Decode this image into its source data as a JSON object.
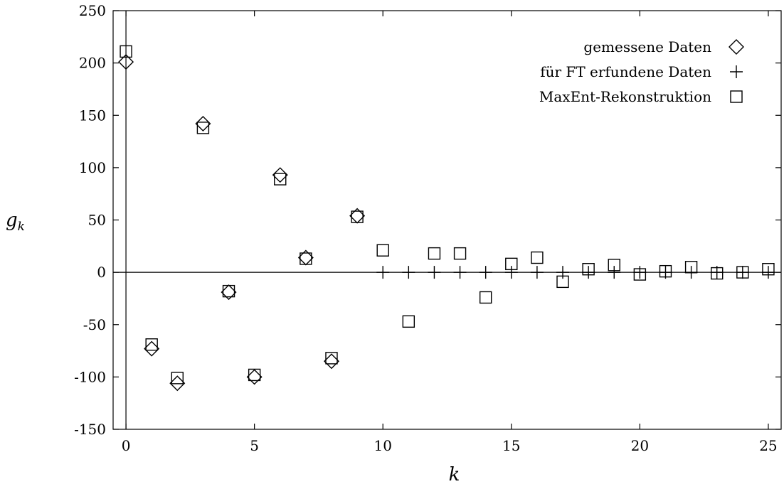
{
  "chart_data": {
    "type": "scatter",
    "title": "",
    "xlabel": "k",
    "ylabel": {
      "base": "g",
      "sub": "k"
    },
    "xlim": [
      -0.5,
      25.5
    ],
    "ylim": [
      -150,
      250
    ],
    "xticks": [
      "0",
      "5",
      "10",
      "15",
      "20",
      "25"
    ],
    "yticks": [
      "250",
      "200",
      "150",
      "100",
      "50",
      "0",
      "-50",
      "-100",
      "-150"
    ],
    "grid": false,
    "zero_lines": true,
    "legend_position": "top-right",
    "series": [
      {
        "name": "gemessene Daten",
        "marker": "diamond",
        "x": [
          0,
          1,
          2,
          3,
          4,
          5,
          6,
          7,
          8,
          9
        ],
        "y": [
          201,
          -73,
          -106,
          142,
          -19,
          -100,
          93,
          14,
          -85,
          54
        ]
      },
      {
        "name": "für FT erfundene Daten",
        "marker": "plus",
        "x": [
          10,
          11,
          12,
          13,
          14,
          15,
          16,
          17,
          18,
          19,
          20,
          21,
          22,
          23,
          24,
          25
        ],
        "y": [
          0,
          0,
          0,
          0,
          0,
          0,
          0,
          0,
          0,
          0,
          0,
          0,
          0,
          0,
          0,
          0
        ]
      },
      {
        "name": "MaxEnt-Rekonstruktion",
        "marker": "square",
        "x": [
          0,
          1,
          2,
          3,
          4,
          5,
          6,
          7,
          8,
          9,
          10,
          11,
          12,
          13,
          14,
          15,
          16,
          17,
          18,
          19,
          20,
          21,
          22,
          23,
          24,
          25
        ],
        "y": [
          211,
          -69,
          -101,
          138,
          -18,
          -98,
          89,
          13,
          -82,
          53,
          21,
          -47,
          18,
          18,
          -24,
          8,
          14,
          -9,
          3,
          7,
          -2,
          1,
          5,
          -1,
          0,
          3
        ]
      }
    ]
  }
}
